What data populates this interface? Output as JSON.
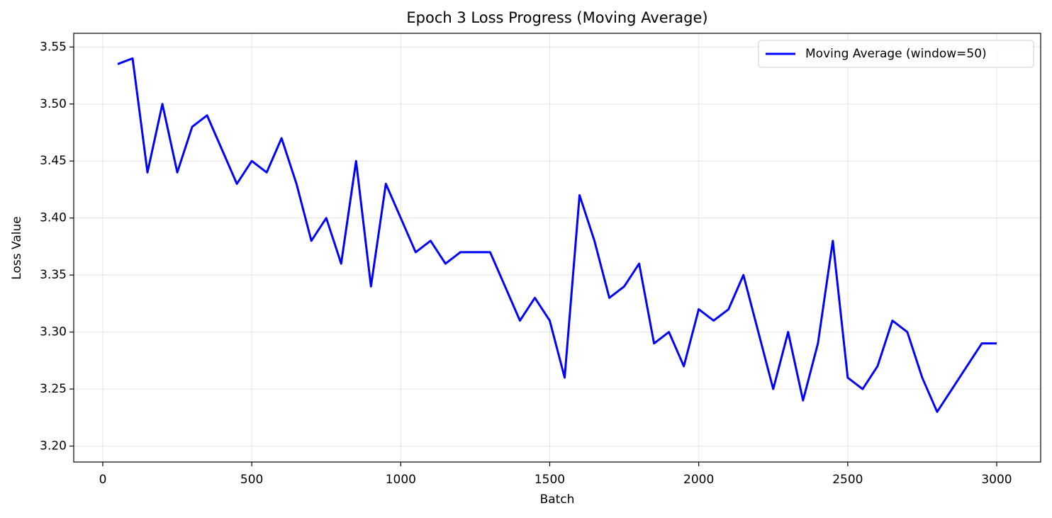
{
  "chart_data": {
    "type": "line",
    "title": "Epoch 3 Loss Progress (Moving Average)",
    "x_label": "Batch",
    "y_label": "Loss Value",
    "x": [
      50,
      100,
      150,
      200,
      250,
      300,
      350,
      400,
      450,
      500,
      550,
      600,
      650,
      700,
      750,
      800,
      850,
      900,
      950,
      1000,
      1050,
      1100,
      1150,
      1200,
      1250,
      1300,
      1350,
      1400,
      1450,
      1500,
      1550,
      1600,
      1650,
      1700,
      1750,
      1800,
      1850,
      1900,
      1950,
      2000,
      2050,
      2100,
      2150,
      2200,
      2250,
      2300,
      2350,
      2400,
      2450,
      2500,
      2550,
      2600,
      2650,
      2700,
      2750,
      2800,
      2850,
      2900,
      2950,
      3000
    ],
    "series": [
      {
        "name": "Moving Average (window=50)",
        "color": "#0000ff",
        "values": [
          3.535,
          3.54,
          3.44,
          3.5,
          3.44,
          3.48,
          3.49,
          3.46,
          3.43,
          3.45,
          3.44,
          3.47,
          3.43,
          3.38,
          3.4,
          3.36,
          3.45,
          3.34,
          3.43,
          3.4,
          3.37,
          3.38,
          3.36,
          3.37,
          3.37,
          3.37,
          3.34,
          3.31,
          3.33,
          3.31,
          3.26,
          3.42,
          3.38,
          3.33,
          3.34,
          3.36,
          3.29,
          3.3,
          3.27,
          3.32,
          3.31,
          3.32,
          3.35,
          3.3,
          3.25,
          3.3,
          3.24,
          3.29,
          3.38,
          3.26,
          3.25,
          3.27,
          3.31,
          3.3,
          3.26,
          3.23,
          3.25,
          3.27,
          3.29,
          3.29
        ]
      }
    ],
    "xlim": [
      -97.5,
      3147.5
    ],
    "ylim": [
      3.186,
      3.562
    ],
    "xticks": [
      0,
      500,
      1000,
      1500,
      2000,
      2500,
      3000
    ],
    "yticks": [
      {
        "value": 3.2,
        "label": "3.20"
      },
      3.25,
      {
        "value": 3.3,
        "label": "3.30"
      },
      3.35,
      {
        "value": 3.4,
        "label": "3.40"
      },
      3.45,
      {
        "value": 3.5,
        "label": "3.50"
      },
      3.55
    ],
    "grid": true,
    "legend": "upper right"
  }
}
